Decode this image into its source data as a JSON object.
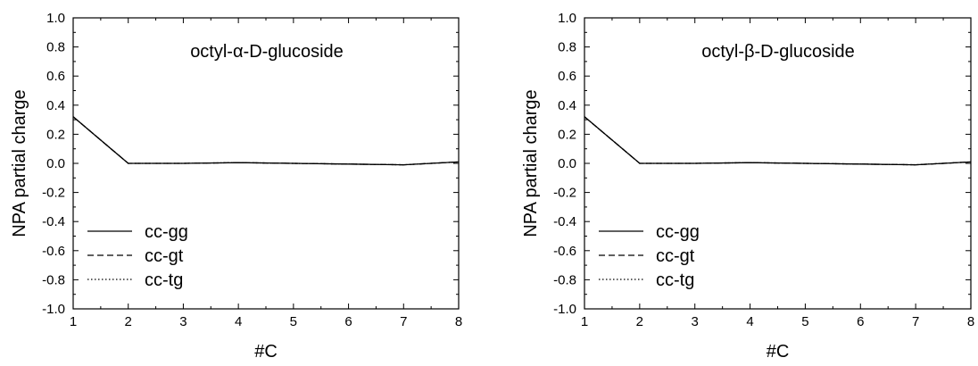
{
  "chart_data": [
    {
      "type": "line",
      "title": "octyl-α-D-glucoside",
      "xlabel": "#C",
      "ylabel": "NPA partial charge",
      "xlim": [
        1,
        8
      ],
      "ylim": [
        -1.0,
        1.0
      ],
      "xticks": [
        1,
        2,
        3,
        4,
        5,
        6,
        7,
        8
      ],
      "xtick_labels": [
        "1",
        "2",
        "3",
        "4",
        "5",
        "6",
        "7",
        "8"
      ],
      "yticks": [
        -1.0,
        -0.8,
        -0.6,
        -0.4,
        -0.2,
        0.0,
        0.2,
        0.4,
        0.6,
        0.8,
        1.0
      ],
      "ytick_labels": [
        "-1.0",
        "-0.8",
        "-0.6",
        "-0.4",
        "-0.2",
        "0.0",
        "0.2",
        "0.4",
        "0.6",
        "0.8",
        "1.0"
      ],
      "grid": false,
      "legend_position": "bottom-left",
      "x": [
        1,
        2,
        3,
        4,
        5,
        6,
        7,
        8
      ],
      "series": [
        {
          "name": "cc-gg",
          "style": "solid",
          "values": [
            0.32,
            0.0,
            0.0,
            0.005,
            0.0,
            -0.005,
            -0.01,
            0.01
          ]
        },
        {
          "name": "cc-gt",
          "style": "dashed",
          "values": [
            0.32,
            0.0,
            0.0,
            0.005,
            0.0,
            -0.005,
            -0.01,
            0.01
          ]
        },
        {
          "name": "cc-tg",
          "style": "dotted",
          "values": [
            0.32,
            0.0,
            0.0,
            0.005,
            0.0,
            -0.005,
            -0.01,
            0.01
          ]
        }
      ]
    },
    {
      "type": "line",
      "title": "octyl-β-D-glucoside",
      "xlabel": "#C",
      "ylabel": "NPA partial charge",
      "xlim": [
        1,
        8
      ],
      "ylim": [
        -1.0,
        1.0
      ],
      "xticks": [
        1,
        2,
        3,
        4,
        5,
        6,
        7,
        8
      ],
      "xtick_labels": [
        "1",
        "2",
        "3",
        "4",
        "5",
        "6",
        "7",
        "8"
      ],
      "yticks": [
        -1.0,
        -0.8,
        -0.6,
        -0.4,
        -0.2,
        0.0,
        0.2,
        0.4,
        0.6,
        0.8,
        1.0
      ],
      "ytick_labels": [
        "-1.0",
        "-0.8",
        "-0.6",
        "-0.4",
        "-0.2",
        "0.0",
        "0.2",
        "0.4",
        "0.6",
        "0.8",
        "1.0"
      ],
      "grid": false,
      "legend_position": "bottom-left",
      "x": [
        1,
        2,
        3,
        4,
        5,
        6,
        7,
        8
      ],
      "series": [
        {
          "name": "cc-gg",
          "style": "solid",
          "values": [
            0.32,
            0.0,
            0.0,
            0.005,
            0.0,
            -0.005,
            -0.01,
            0.01
          ]
        },
        {
          "name": "cc-gt",
          "style": "dashed",
          "values": [
            0.32,
            0.0,
            0.0,
            0.005,
            0.0,
            -0.005,
            -0.01,
            0.01
          ]
        },
        {
          "name": "cc-tg",
          "style": "dotted",
          "values": [
            0.32,
            0.0,
            0.0,
            0.005,
            0.0,
            -0.005,
            -0.01,
            0.01
          ]
        }
      ]
    }
  ]
}
